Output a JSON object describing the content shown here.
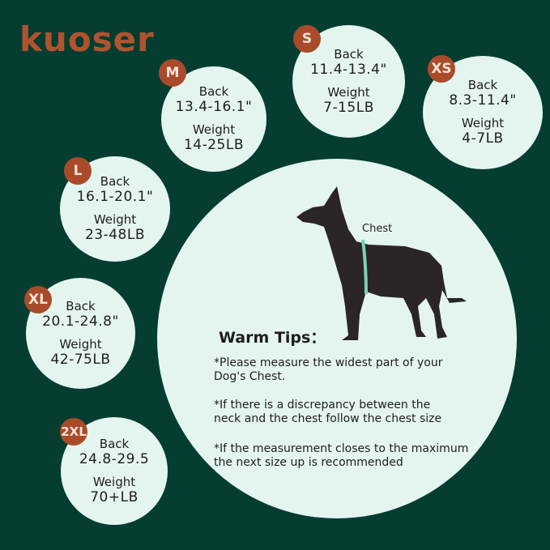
{
  "brand": {
    "logo": "kuoser"
  },
  "sizes": [
    {
      "size": "M",
      "back_label": "Back",
      "back": "13.4-16.1\"",
      "weight_label": "Weight",
      "weight": "14-25LB"
    },
    {
      "size": "S",
      "back_label": "Back",
      "back": "11.4-13.4\"",
      "weight_label": "Weight",
      "weight": "7-15LB"
    },
    {
      "size": "XS",
      "back_label": "Back",
      "back": "8.3-11.4\"",
      "weight_label": "Weight",
      "weight": "4-7LB"
    },
    {
      "size": "L",
      "back_label": "Back",
      "back": "16.1-20.1\"",
      "weight_label": "Weight",
      "weight": "23-48LB"
    },
    {
      "size": "XL",
      "back_label": "Back",
      "back": "20.1-24.8\"",
      "weight_label": "Weight",
      "weight": "42-75LB"
    },
    {
      "size": "2XL",
      "back_label": "Back",
      "back": "24.8-29.5",
      "weight_label": "Weight",
      "weight": "70+LB"
    }
  ],
  "diagram": {
    "chest_label": "Chest"
  },
  "tips": {
    "title": "Warm Tips：",
    "items": [
      "*Please measure the widest part of your\n  Dog's Chest.",
      "*If there is a discrepancy between the\n  neck and the chest follow the chest size",
      "*If the measurement closes to the maximum\n  the next size up is recommended"
    ]
  },
  "colors": {
    "background": "#063d31",
    "circle": "#e4f5ef",
    "badge": "#a94b2b",
    "logo": "#b0532e"
  }
}
